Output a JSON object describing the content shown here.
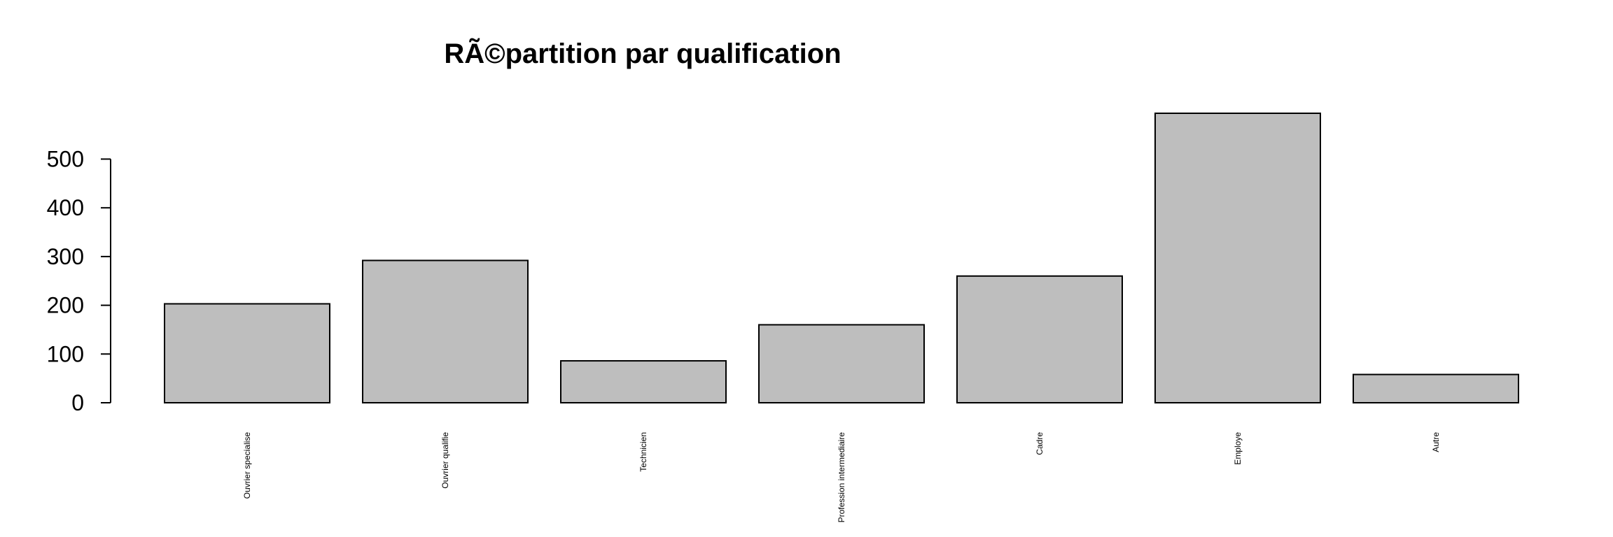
{
  "chart_data": {
    "type": "bar",
    "title": "RÃ©partition par qualification",
    "xlabel": "",
    "ylabel": "",
    "categories": [
      "Ouvrier specialise",
      "Ouvrier qualifie",
      "Technicien",
      "Profession intermediaire",
      "Cadre",
      "Employe",
      "Autre"
    ],
    "values": [
      203,
      292,
      86,
      160,
      260,
      594,
      58
    ],
    "yticks": [
      0,
      100,
      200,
      300,
      400,
      500
    ],
    "ylim": [
      0,
      594
    ],
    "grid": false,
    "legend": false,
    "colors": {
      "bar_fill": "#bebebe",
      "bar_stroke": "#000000",
      "axis": "#000000",
      "text": "#000000",
      "background": "#ffffff"
    }
  }
}
